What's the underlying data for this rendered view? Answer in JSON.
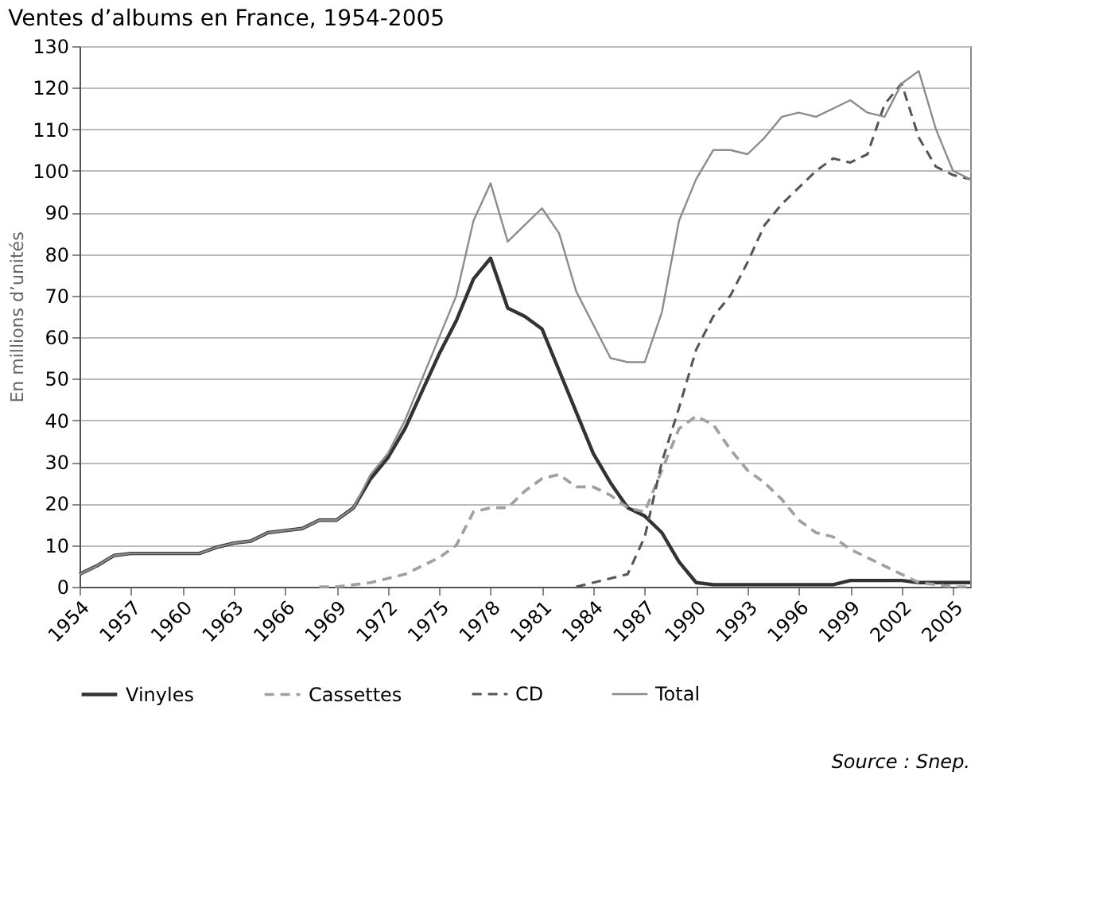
{
  "chart_data": {
    "type": "line",
    "title": "Ventes d’albums en France, 1954-2005",
    "ylabel": "En millions d’unités",
    "x": [
      1954,
      1955,
      1956,
      1957,
      1958,
      1959,
      1960,
      1961,
      1962,
      1963,
      1964,
      1965,
      1966,
      1967,
      1968,
      1969,
      1970,
      1971,
      1972,
      1973,
      1974,
      1975,
      1976,
      1977,
      1978,
      1979,
      1980,
      1981,
      1982,
      1983,
      1984,
      1985,
      1986,
      1987,
      1988,
      1989,
      1990,
      1991,
      1992,
      1993,
      1994,
      1995,
      1996,
      1997,
      1998,
      1999,
      2000,
      2001,
      2002,
      2003,
      2004,
      2005,
      2006
    ],
    "series": [
      {
        "name": "Vinyles",
        "color": "#333333",
        "line_style": "solid",
        "values": [
          3,
          5,
          7.5,
          8,
          8,
          8,
          8,
          8,
          9.5,
          10.5,
          11,
          13,
          13.5,
          14,
          16,
          16,
          19,
          26,
          31,
          38,
          47,
          56,
          64,
          74,
          79,
          67,
          65,
          62,
          52,
          42,
          32,
          25,
          19,
          17,
          13,
          6,
          1,
          0.5,
          0.5,
          0.5,
          0.5,
          0.5,
          0.5,
          0.5,
          0.5,
          1.5,
          1.5,
          1.5,
          1.5,
          1,
          1,
          1,
          1
        ]
      },
      {
        "name": "Cassettes",
        "color": "#a0a0a0",
        "line_style": "dashed",
        "values": [
          null,
          null,
          null,
          null,
          null,
          null,
          null,
          null,
          null,
          null,
          null,
          null,
          null,
          null,
          0,
          0,
          0.5,
          1,
          2,
          3,
          5,
          7,
          10,
          18,
          19,
          19,
          23,
          26,
          27,
          24,
          24,
          22,
          19,
          18,
          28,
          38,
          41,
          39,
          33,
          28,
          25,
          21,
          16,
          13,
          12,
          9,
          7,
          5,
          3,
          1,
          0.5,
          0,
          0
        ]
      },
      {
        "name": "CD",
        "color": "#555555",
        "line_style": "dashed",
        "values": [
          null,
          null,
          null,
          null,
          null,
          null,
          null,
          null,
          null,
          null,
          null,
          null,
          null,
          null,
          null,
          null,
          null,
          null,
          null,
          null,
          null,
          null,
          null,
          null,
          null,
          null,
          null,
          null,
          null,
          0,
          1,
          2,
          3,
          12,
          30,
          43,
          57,
          65,
          70,
          78,
          87,
          92,
          96,
          100,
          103,
          102,
          104,
          116,
          121,
          108,
          101,
          99,
          98
        ]
      },
      {
        "name": "Total",
        "color": "#8c8c8c",
        "line_style": "solid",
        "values": [
          3,
          5,
          7.5,
          8,
          8,
          8,
          8,
          8,
          9.5,
          10.5,
          11,
          13,
          13.5,
          14,
          16,
          16,
          19,
          27,
          32,
          40,
          50,
          60,
          70,
          88,
          97,
          83,
          87,
          91,
          85,
          71,
          63,
          55,
          54,
          54,
          66,
          88,
          98,
          105,
          105,
          104,
          108,
          113,
          114,
          113,
          115,
          117,
          114,
          113,
          121,
          124,
          110,
          100,
          98
        ]
      }
    ],
    "xlim": [
      1954,
      2006
    ],
    "xticks": [
      1954,
      1957,
      1960,
      1963,
      1966,
      1969,
      1972,
      1975,
      1978,
      1981,
      1984,
      1987,
      1990,
      1993,
      1996,
      1999,
      2002,
      2005
    ],
    "ylim": [
      0,
      130
    ],
    "yticks": [
      0,
      10,
      20,
      30,
      40,
      50,
      60,
      70,
      80,
      90,
      100,
      110,
      120,
      130
    ],
    "grid": "y",
    "legend": "bottom",
    "marker": "none",
    "annotations": [
      "Source : Snep."
    ]
  }
}
